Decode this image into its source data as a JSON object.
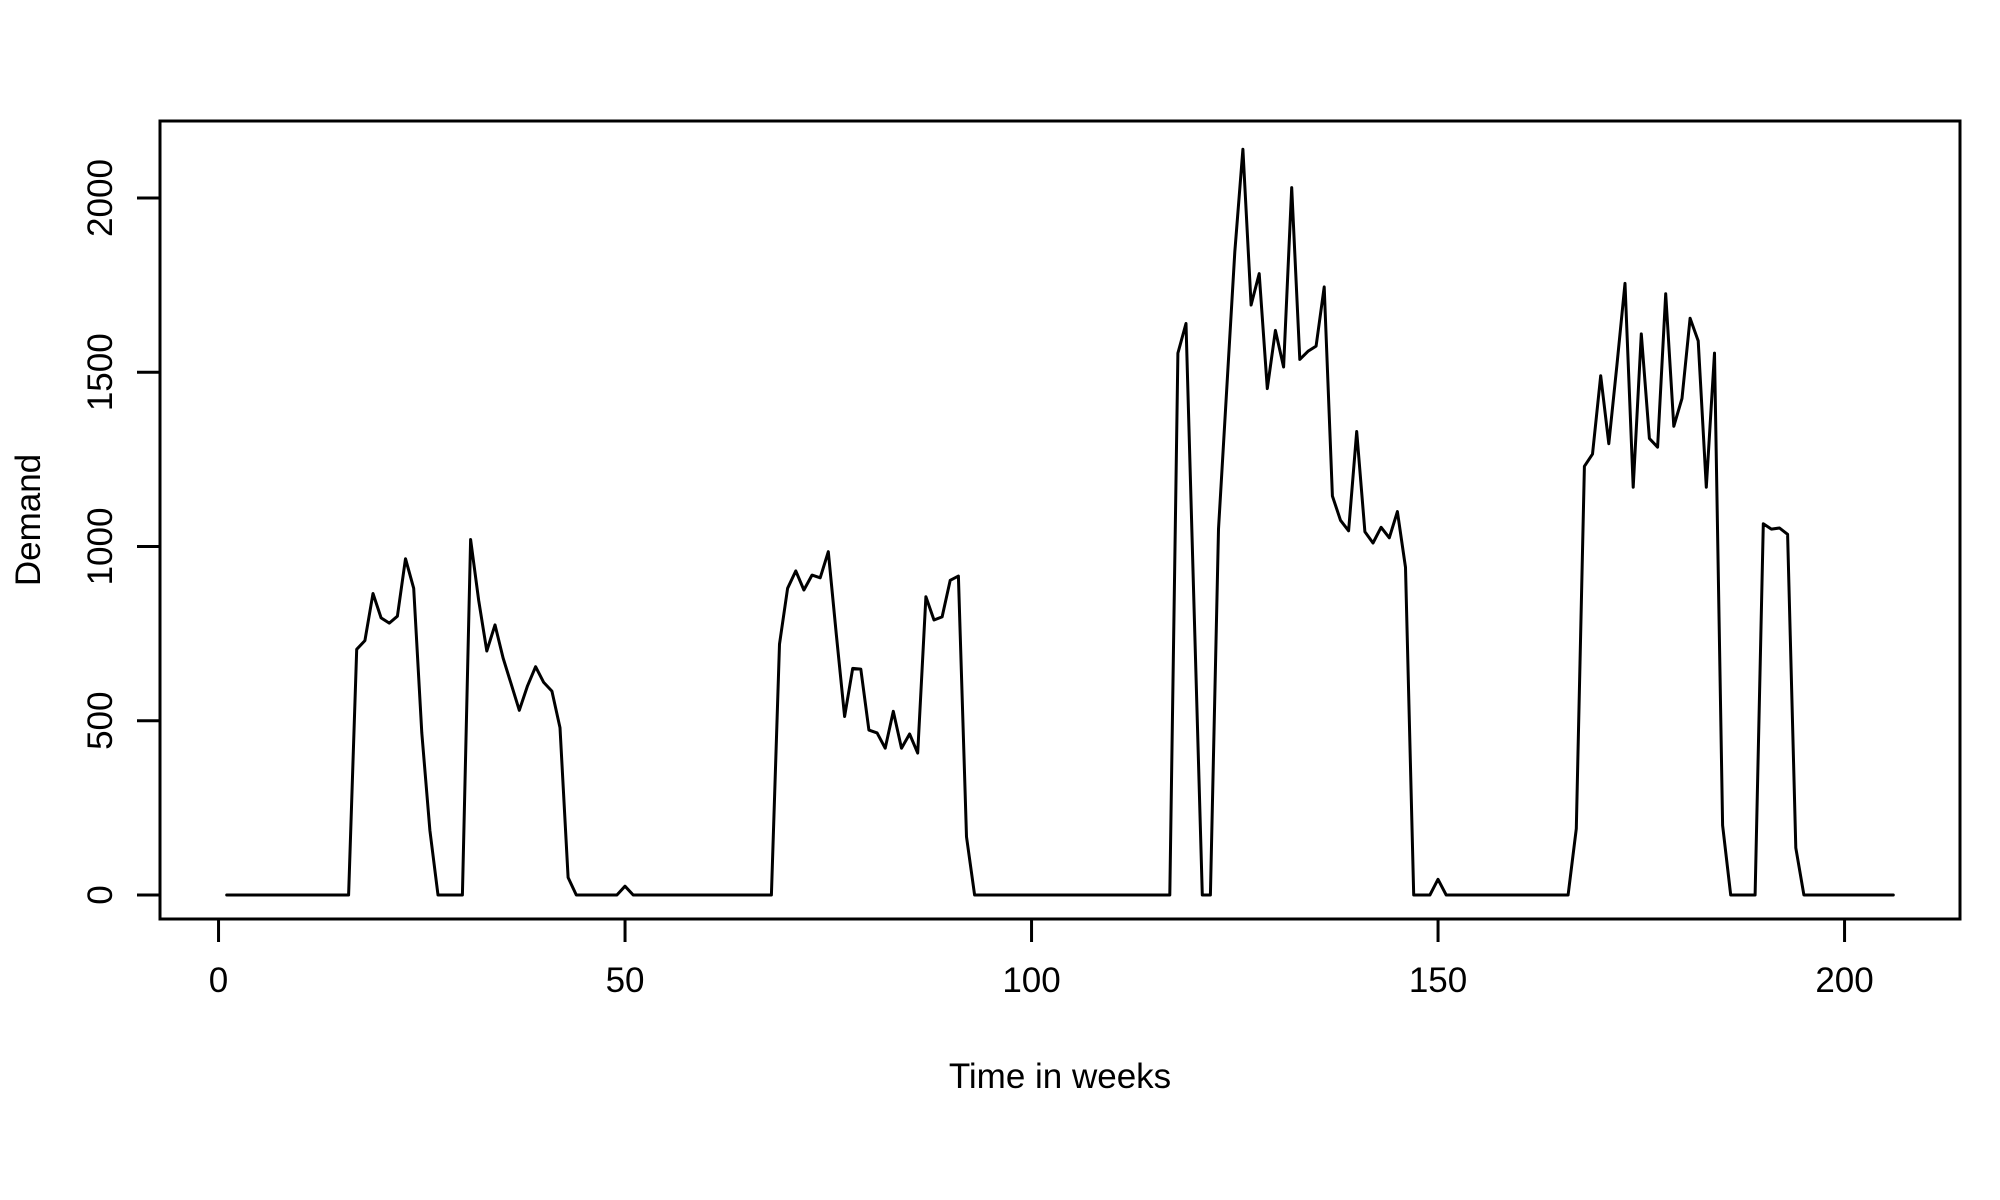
{
  "page": {
    "background": "#ffffff",
    "foreground": "#000000"
  },
  "chart_data": {
    "type": "line",
    "title": "",
    "xlabel": "Time in weeks",
    "ylabel": "Demand",
    "series_name": "Demand",
    "line_color": "#000000",
    "background_color": "#ffffff",
    "grid": false,
    "legend_position": "none",
    "xticks": [
      0,
      50,
      100,
      150,
      200
    ],
    "yticks": [
      0,
      500,
      1000,
      1500,
      2000
    ],
    "xlim": [
      -7.2,
      214.2
    ],
    "ylim": [
      -69,
      2221
    ],
    "x_start": 1,
    "x_step": 1,
    "n_points": 206,
    "values": [
      0,
      0,
      0,
      0,
      0,
      0,
      0,
      0,
      0,
      0,
      0,
      0,
      0,
      0,
      0,
      0,
      705,
      730,
      865,
      795,
      780,
      800,
      965,
      880,
      465,
      185,
      0,
      0,
      0,
      0,
      1020,
      845,
      700,
      775,
      680,
      605,
      530,
      600,
      655,
      610,
      585,
      480,
      50,
      0,
      0,
      0,
      0,
      0,
      0,
      25,
      0,
      0,
      0,
      0,
      0,
      0,
      0,
      0,
      0,
      0,
      0,
      0,
      0,
      0,
      0,
      0,
      0,
      0,
      720,
      880,
      930,
      875,
      918,
      910,
      985,
      745,
      512,
      650,
      648,
      473,
      465,
      421,
      527,
      421,
      462,
      407,
      856,
      789,
      798,
      903,
      915,
      167,
      0,
      0,
      0,
      0,
      0,
      0,
      0,
      0,
      0,
      0,
      0,
      0,
      0,
      0,
      0,
      0,
      0,
      0,
      0,
      0,
      0,
      0,
      0,
      0,
      0,
      1555,
      1640,
      820,
      0,
      0,
      1050,
      1450,
      1845,
      2140,
      1693,
      1783,
      1453,
      1620,
      1515,
      2030,
      1537,
      1560,
      1575,
      1745,
      1145,
      1075,
      1045,
      1330,
      1042,
      1010,
      1055,
      1025,
      1100,
      940,
      0,
      0,
      0,
      45,
      0,
      0,
      0,
      0,
      0,
      0,
      0,
      0,
      0,
      0,
      0,
      0,
      0,
      0,
      0,
      0,
      190,
      1230,
      1265,
      1490,
      1295,
      1520,
      1755,
      1170,
      1610,
      1310,
      1285,
      1725,
      1345,
      1425,
      1655,
      1590,
      1170,
      1555,
      200,
      0,
      0,
      0,
      0,
      1065,
      1050,
      1053,
      1035,
      135,
      0,
      0,
      0,
      0,
      0,
      0,
      0,
      0,
      0,
      0,
      0,
      0
    ]
  }
}
